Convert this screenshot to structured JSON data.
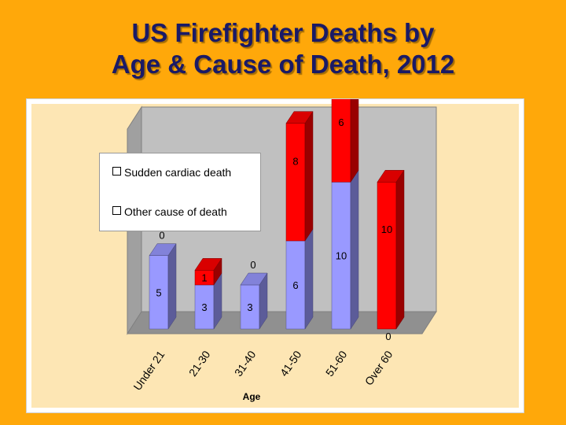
{
  "slide": {
    "title_line1": "US Firefighter Deaths by",
    "title_line2": "Age & Cause of Death, 2012"
  },
  "colors": {
    "background": "#FFA80A",
    "plot_area": "#FDE6B4",
    "cardiac": "#FF0000",
    "other": "#9999FF"
  },
  "chart_data": {
    "type": "bar",
    "stacked": true,
    "three_d": true,
    "categories": [
      "Under 21",
      "21-30",
      "31-40",
      "41-50",
      "51-60",
      "Over 60"
    ],
    "series": [
      {
        "name": "Other cause of death",
        "color": "#9999FF",
        "values": [
          5,
          3,
          3,
          6,
          10,
          0
        ]
      },
      {
        "name": "Sudden cardiac death",
        "color": "#FF0000",
        "values": [
          0,
          1,
          0,
          8,
          6,
          10
        ]
      }
    ],
    "xlabel": "Age",
    "ylabel": "",
    "ylim": [
      0,
      16
    ],
    "grid": false,
    "legend_position": "top-left"
  }
}
